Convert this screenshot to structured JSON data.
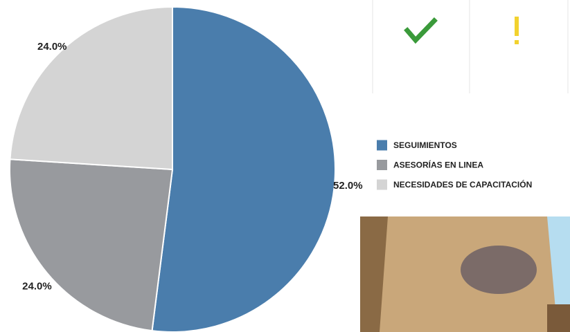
{
  "chart_data": {
    "type": "pie",
    "categories": [
      "SEGUIMIENTOS",
      "ASESORÍAS EN LINEA",
      "NECESIDADES DE CAPACITACIÓN"
    ],
    "values": [
      52,
      24,
      24
    ],
    "value_labels": [
      "52.0%",
      "24.0%",
      "24.0%"
    ],
    "colors": [
      "#4a7dac",
      "#989a9e",
      "#d4d4d4"
    ],
    "legend": "right"
  }
}
